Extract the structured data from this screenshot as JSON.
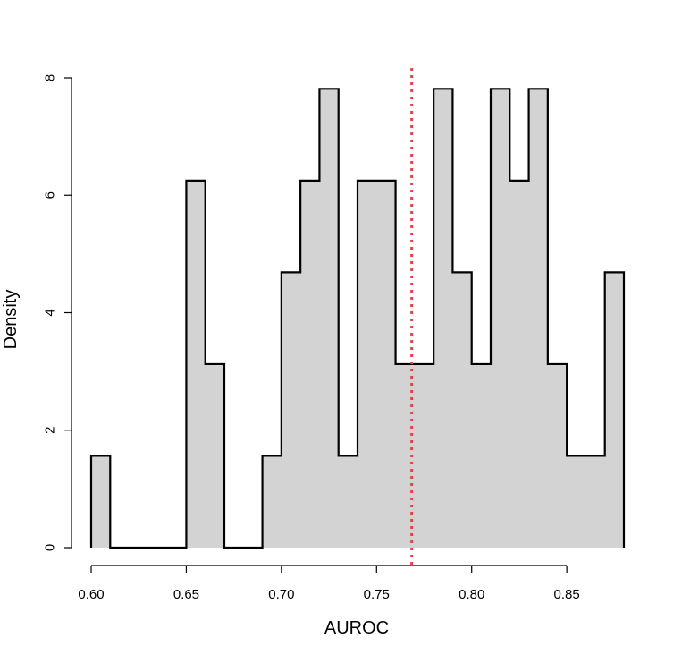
{
  "chart_data": {
    "type": "histogram",
    "title": "",
    "xlabel": "AUROC",
    "ylabel": "Density",
    "bin_width": 0.01,
    "bin_start": 0.6,
    "bin_end": 0.88,
    "values": [
      1.5625,
      0,
      0,
      0,
      0,
      6.25,
      3.125,
      0,
      0,
      1.5625,
      4.6875,
      6.25,
      7.8125,
      1.5625,
      6.25,
      6.25,
      3.125,
      3.125,
      7.8125,
      4.6875,
      3.125,
      7.8125,
      6.25,
      7.8125,
      3.125,
      1.5625,
      1.5625,
      4.6875
    ],
    "xlim": [
      0.6,
      0.88
    ],
    "ylim": [
      0,
      8
    ],
    "x_ticks": [
      "0.60",
      "0.65",
      "0.70",
      "0.75",
      "0.80",
      "0.85"
    ],
    "y_ticks": [
      "0",
      "2",
      "4",
      "6",
      "8"
    ],
    "fill_color": "#d3d3d3",
    "outline_color": "#000000",
    "reference_line": {
      "x": 0.7685,
      "color": "#e0434c",
      "style": "dotted"
    },
    "grid": false,
    "legend": "none"
  }
}
